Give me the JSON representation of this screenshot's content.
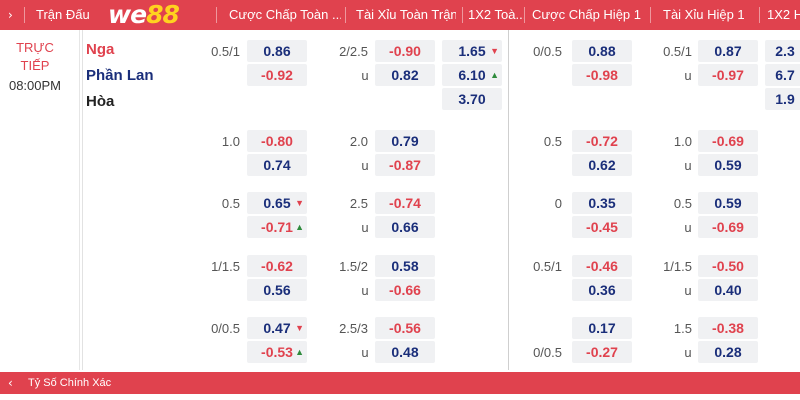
{
  "header": {
    "expand_icon": "›",
    "col_match": "Trận Đấu",
    "logo": {
      "a": "we",
      "b": "88"
    },
    "col_hdp_ft": "Cược Chấp Toàn ...",
    "col_ou_ft": "Tài Xỉu Toàn Trận",
    "col_1x2_ft": "1X2 Toà...",
    "col_hdp_h1": "Cược Chấp Hiệp 1",
    "col_ou_h1": "Tài Xỉu Hiệp 1",
    "col_1x2_h1": "1X2 H"
  },
  "match": {
    "status_line1": "TRỰC",
    "status_line2": "TIẾP",
    "time": "08:00PM",
    "home": "Nga",
    "away": "Phần Lan",
    "draw": "Hòa"
  },
  "colors": {
    "accent": "#e0424e",
    "negative": "#e0424e",
    "positive": "#1a2e7a",
    "up": "#2e8b3c"
  },
  "rows": [
    {
      "hdp_line": "0.5/1",
      "hdp_home": "0.86",
      "hdp_away": "-0.92",
      "ou_line": "2/2.5",
      "ou_over": "-0.90",
      "ou_u": "u",
      "ou_under": "0.82",
      "x12_home": "1.65",
      "x12_away": "6.10",
      "x12_draw": "3.70",
      "h1_hdp_line": "0/0.5",
      "h1_hdp_home": "0.88",
      "h1_hdp_away": "-0.98",
      "h1_ou_line": "0.5/1",
      "h1_ou_over": "0.87",
      "h1_ou_u": "u",
      "h1_ou_under": "-0.97",
      "h1_x12_home": "2.3",
      "h1_x12_away": "6.7",
      "h1_x12_draw": "1.9"
    },
    {
      "hdp_line": "1.0",
      "hdp_home": "-0.80",
      "hdp_away": "0.74",
      "ou_line": "2.0",
      "ou_over": "0.79",
      "ou_u": "u",
      "ou_under": "-0.87",
      "h1_hdp_line": "0.5",
      "h1_hdp_home": "-0.72",
      "h1_hdp_away": "0.62",
      "h1_ou_line": "1.0",
      "h1_ou_over": "-0.69",
      "h1_ou_u": "u",
      "h1_ou_under": "0.59"
    },
    {
      "hdp_line": "0.5",
      "hdp_home": "0.65",
      "hdp_away": "-0.71",
      "ou_line": "2.5",
      "ou_over": "-0.74",
      "ou_u": "u",
      "ou_under": "0.66",
      "h1_hdp_line": "0",
      "h1_hdp_home": "0.35",
      "h1_hdp_away": "-0.45",
      "h1_ou_line": "0.5",
      "h1_ou_over": "0.59",
      "h1_ou_u": "u",
      "h1_ou_under": "-0.69"
    },
    {
      "hdp_line": "1/1.5",
      "hdp_home": "-0.62",
      "hdp_away": "0.56",
      "ou_line": "1.5/2",
      "ou_over": "0.58",
      "ou_u": "u",
      "ou_under": "-0.66",
      "h1_hdp_line": "0.5/1",
      "h1_hdp_home": "-0.46",
      "h1_hdp_away": "0.36",
      "h1_ou_line": "1/1.5",
      "h1_ou_over": "-0.50",
      "h1_ou_u": "u",
      "h1_ou_under": "0.40"
    },
    {
      "hdp_line": "0/0.5",
      "hdp_home": "0.47",
      "hdp_away": "-0.53",
      "ou_line": "2.5/3",
      "ou_over": "-0.56",
      "ou_u": "u",
      "ou_under": "0.48",
      "h1_hdp_line": "",
      "h1_hdp_home": "0.17",
      "h1_hdp_line2": "0/0.5",
      "h1_hdp_away": "-0.27",
      "h1_ou_line": "1.5",
      "h1_ou_over": "-0.38",
      "h1_ou_u": "u",
      "h1_ou_under": "0.28"
    }
  ],
  "footer": {
    "expand_icon": "‹",
    "label": "Tỷ Số Chính Xác"
  }
}
